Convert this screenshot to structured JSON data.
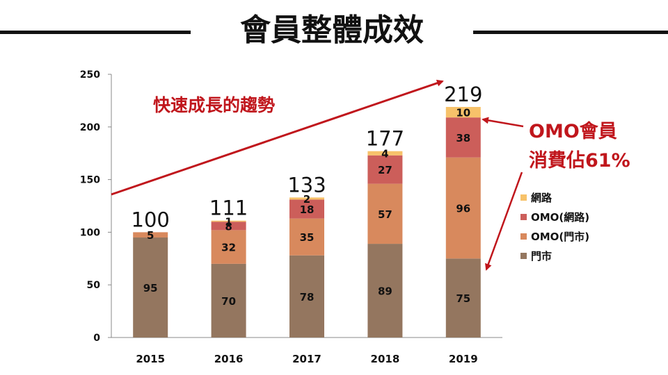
{
  "title": "會員整體成效",
  "annotations": {
    "trend": "快速成長的趨勢",
    "omo_line1": "OMO會員",
    "omo_line2": "消費佔61%"
  },
  "colors": {
    "accent": "#c0161c",
    "store": "#94765f",
    "omo_store": "#d8895d",
    "omo_online": "#cc5e5a",
    "online": "#f7c26a"
  },
  "chart_data": {
    "type": "bar",
    "stacked": true,
    "categories": [
      "2015",
      "2016",
      "2017",
      "2018",
      "2019"
    ],
    "series": [
      {
        "name": "門市",
        "values": [
          95,
          70,
          78,
          89,
          75
        ],
        "color": "#94765f"
      },
      {
        "name": "OMO(門市)",
        "values": [
          5,
          32,
          35,
          57,
          96
        ],
        "color": "#d8895d"
      },
      {
        "name": "OMO(網路)",
        "values": [
          null,
          8,
          18,
          27,
          38
        ],
        "color": "#cc5e5a"
      },
      {
        "name": "網路",
        "values": [
          null,
          1,
          2,
          4,
          10
        ],
        "color": "#f7c26a"
      }
    ],
    "totals": [
      100,
      111,
      133,
      177,
      219
    ],
    "ylim": [
      0,
      250
    ],
    "yticks": [
      0,
      50,
      100,
      150,
      200,
      250
    ],
    "legend_position": "right",
    "grid": false
  }
}
